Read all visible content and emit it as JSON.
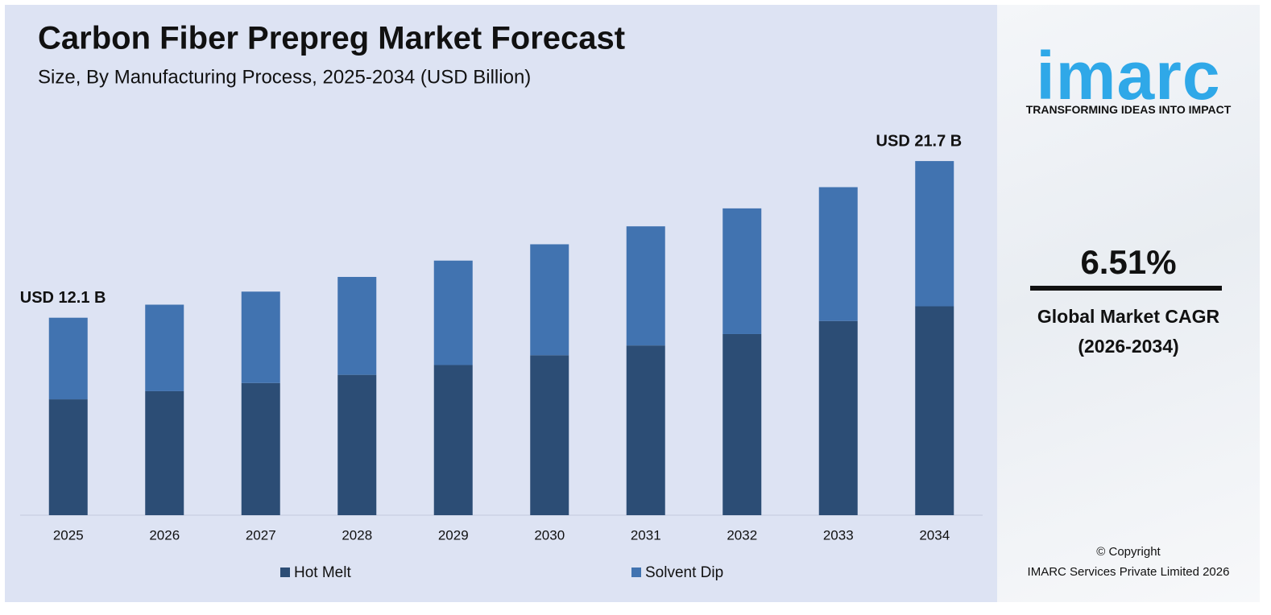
{
  "chart_data": {
    "type": "stacked_bar",
    "title": "Carbon Fiber Prepreg Market Forecast",
    "subtitle": "Size, By Manufacturing Process, 2025-2034 (USD Billion)",
    "categories": [
      "2025",
      "2026",
      "2027",
      "2028",
      "2029",
      "2030",
      "2031",
      "2032",
      "2033",
      "2034"
    ],
    "series": [
      {
        "name": "Hot Melt",
        "color": "#2c4d75",
        "values": [
          7.1,
          7.6,
          8.1,
          8.6,
          9.2,
          9.8,
          10.4,
          11.1,
          11.9,
          12.8
        ]
      },
      {
        "name": "Solvent Dip",
        "color": "#4173b0",
        "values": [
          5.0,
          5.3,
          5.6,
          6.0,
          6.4,
          6.8,
          7.3,
          7.7,
          8.2,
          8.9
        ]
      }
    ],
    "annotations": [
      {
        "category": "2025",
        "value": 12.1,
        "label": "USD 12.1 B"
      },
      {
        "category": "2034",
        "value": 21.7,
        "label": "USD 21.7 B"
      }
    ],
    "ylim": [
      0,
      22
    ],
    "legend": "bottom"
  },
  "side_panel": {
    "logo": "imarc",
    "tagline": "TRANSFORMING IDEAS INTO IMPACT",
    "cagr": "6.51%",
    "cagr_label": "Global Market CAGR",
    "cagr_period": "(2026-2034)",
    "copyright": "© Copyright",
    "company": "IMARC Services Private Limited 2026"
  }
}
